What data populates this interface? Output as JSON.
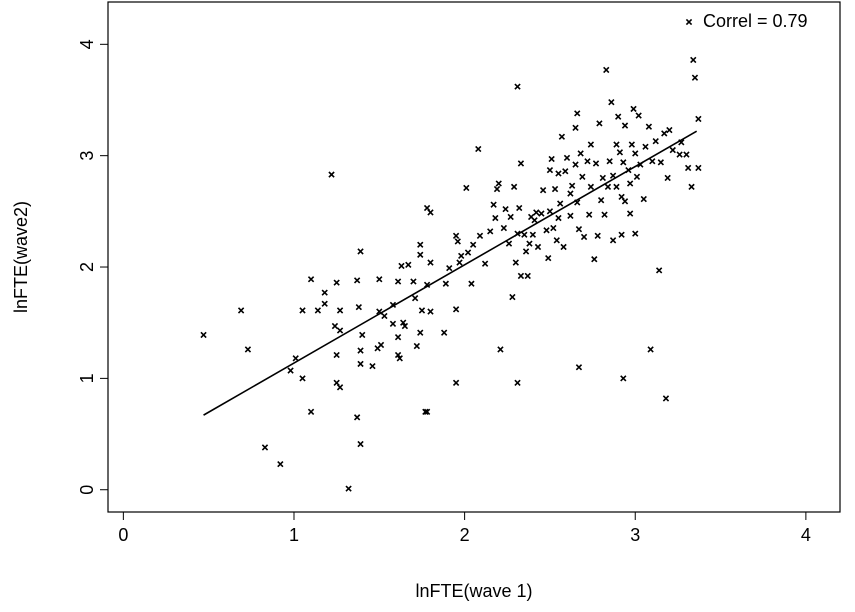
{
  "chart_data": {
    "type": "scatter",
    "x_label": "lnFTE(wave 1)",
    "y_label": "lnFTE(wave2)",
    "xlim": [
      -0.09,
      4.2
    ],
    "ylim": [
      -0.2,
      4.38
    ],
    "xticks": [
      0,
      1,
      2,
      3,
      4
    ],
    "yticks": [
      0,
      1,
      2,
      3,
      4
    ],
    "grid": false,
    "legend": "upper right",
    "series": [
      {
        "name": "Correl = 0.79",
        "color": "#000000",
        "marker": "x",
        "x": [
          0.47,
          0.69,
          0.73,
          0.83,
          0.92,
          0.98,
          1.01,
          1.05,
          1.05,
          1.1,
          1.1,
          1.14,
          1.18,
          1.18,
          1.22,
          1.24,
          1.25,
          1.25,
          1.25,
          1.27,
          1.27,
          1.27,
          1.32,
          1.37,
          1.37,
          1.38,
          1.39,
          1.39,
          1.39,
          1.39,
          1.4,
          1.46,
          1.49,
          1.5,
          1.5,
          1.51,
          1.53,
          1.58,
          1.58,
          1.61,
          1.61,
          1.61,
          1.62,
          1.63,
          1.64,
          1.65,
          1.67,
          1.7,
          1.71,
          1.72,
          1.74,
          1.74,
          1.74,
          1.75,
          1.77,
          1.78,
          1.78,
          1.78,
          1.8,
          1.8,
          1.8,
          1.88,
          1.89,
          1.91,
          1.95,
          1.95,
          1.95,
          1.96,
          1.97,
          1.98,
          2.01,
          2.02,
          2.04,
          2.05,
          2.08,
          2.09,
          2.12,
          2.15,
          2.17,
          2.18,
          2.19,
          2.2,
          2.21,
          2.23,
          2.24,
          2.26,
          2.27,
          2.28,
          2.29,
          2.3,
          2.31,
          2.31,
          2.31,
          2.32,
          2.33,
          2.33,
          2.35,
          2.36,
          2.37,
          2.38,
          2.39,
          2.4,
          2.41,
          2.42,
          2.43,
          2.45,
          2.46,
          2.48,
          2.49,
          2.5,
          2.5,
          2.51,
          2.52,
          2.53,
          2.54,
          2.55,
          2.55,
          2.56,
          2.57,
          2.58,
          2.59,
          2.6,
          2.62,
          2.62,
          2.63,
          2.65,
          2.65,
          2.66,
          2.66,
          2.67,
          2.67,
          2.68,
          2.69,
          2.7,
          2.72,
          2.73,
          2.74,
          2.74,
          2.76,
          2.77,
          2.78,
          2.79,
          2.8,
          2.81,
          2.82,
          2.83,
          2.84,
          2.85,
          2.86,
          2.87,
          2.87,
          2.89,
          2.89,
          2.9,
          2.91,
          2.92,
          2.92,
          2.93,
          2.93,
          2.94,
          2.94,
          2.96,
          2.97,
          2.97,
          2.98,
          2.99,
          3.0,
          3.0,
          3.01,
          3.02,
          3.03,
          3.05,
          3.06,
          3.08,
          3.09,
          3.1,
          3.12,
          3.14,
          3.15,
          3.17,
          3.18,
          3.19,
          3.2,
          3.22,
          3.26,
          3.27,
          3.3,
          3.31,
          3.33,
          3.34,
          3.35,
          3.37,
          3.37
        ],
        "values": [
          1.39,
          1.61,
          1.26,
          0.38,
          0.23,
          1.07,
          1.18,
          1.0,
          1.61,
          0.7,
          1.89,
          1.61,
          1.67,
          1.77,
          2.83,
          1.47,
          1.21,
          0.96,
          1.86,
          0.92,
          1.43,
          1.61,
          0.01,
          0.65,
          1.88,
          1.64,
          2.14,
          0.41,
          1.13,
          1.25,
          1.39,
          1.11,
          1.27,
          1.6,
          1.89,
          1.3,
          1.56,
          1.66,
          1.49,
          1.21,
          1.87,
          1.37,
          1.18,
          2.01,
          1.5,
          1.47,
          2.02,
          1.87,
          1.72,
          1.29,
          1.41,
          2.2,
          2.11,
          1.61,
          0.7,
          0.7,
          1.84,
          2.53,
          2.49,
          1.6,
          2.04,
          1.41,
          1.85,
          1.99,
          1.62,
          0.96,
          2.28,
          2.23,
          2.04,
          2.1,
          2.71,
          2.13,
          1.85,
          2.2,
          3.06,
          2.28,
          2.03,
          2.32,
          2.56,
          2.44,
          2.7,
          2.75,
          1.26,
          2.35,
          2.52,
          2.21,
          2.45,
          1.73,
          2.72,
          2.04,
          3.62,
          0.96,
          2.3,
          2.53,
          1.92,
          2.93,
          2.29,
          2.14,
          1.92,
          2.21,
          2.45,
          2.29,
          2.42,
          2.49,
          2.18,
          2.48,
          2.69,
          2.33,
          2.08,
          2.5,
          2.87,
          2.97,
          2.35,
          2.7,
          2.24,
          2.84,
          2.44,
          2.57,
          3.17,
          2.18,
          2.86,
          2.98,
          2.66,
          2.46,
          2.73,
          2.92,
          3.25,
          2.58,
          3.38,
          1.1,
          2.34,
          3.02,
          2.81,
          2.27,
          2.95,
          2.47,
          3.1,
          2.72,
          2.07,
          2.93,
          2.28,
          3.29,
          2.6,
          2.8,
          2.47,
          3.77,
          2.72,
          2.95,
          3.48,
          2.82,
          2.24,
          3.1,
          2.72,
          3.35,
          3.03,
          2.63,
          2.29,
          2.94,
          1.0,
          3.27,
          2.59,
          2.87,
          2.75,
          2.48,
          3.1,
          3.42,
          2.3,
          3.02,
          2.81,
          3.36,
          2.92,
          2.61,
          3.08,
          3.26,
          1.26,
          2.95,
          3.13,
          1.97,
          2.94,
          3.2,
          0.82,
          2.8,
          3.23,
          3.05,
          3.01,
          3.12,
          3.01,
          2.89,
          2.72,
          3.86,
          3.7,
          3.33,
          2.89
        ]
      }
    ],
    "trend_line": {
      "color": "#000000",
      "x": [
        0.47,
        3.36
      ],
      "values": [
        0.67,
        3.22
      ]
    }
  }
}
